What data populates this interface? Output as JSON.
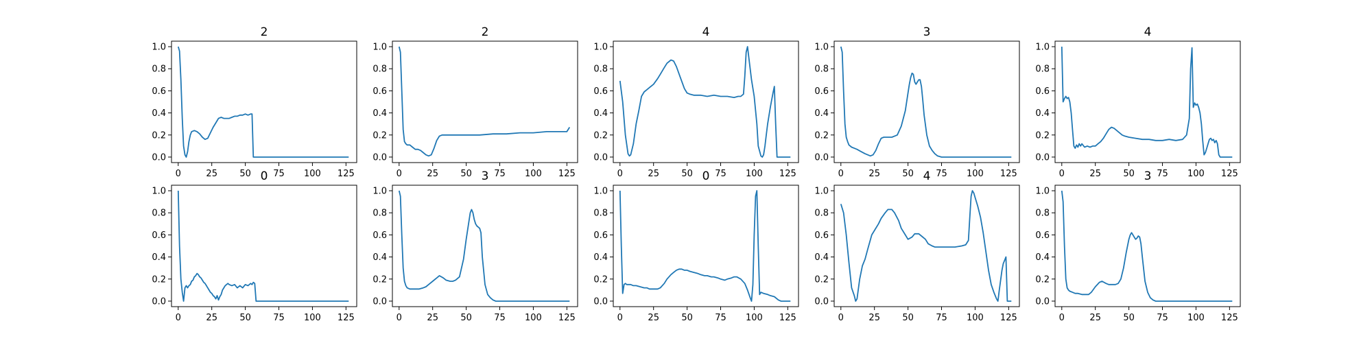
{
  "colors": {
    "line": "#1f77b4",
    "axes": "#000000",
    "background": "#ffffff"
  },
  "chart_data": [
    {
      "type": "line",
      "title": "2",
      "xlim": [
        -5,
        133
      ],
      "ylim": [
        -0.05,
        1.05
      ],
      "xticks": [
        0,
        25,
        50,
        75,
        100,
        125
      ],
      "yticks": [
        0.0,
        0.2,
        0.4,
        0.6,
        0.8,
        1.0
      ],
      "x": [
        0,
        1,
        2,
        3,
        4,
        5,
        6,
        7,
        8,
        9,
        10,
        12,
        14,
        16,
        18,
        20,
        22,
        24,
        26,
        28,
        30,
        32,
        34,
        36,
        38,
        40,
        42,
        44,
        46,
        48,
        50,
        52,
        54,
        55,
        56,
        60,
        70,
        80,
        90,
        100,
        110,
        120,
        127
      ],
      "y": [
        1.0,
        0.96,
        0.7,
        0.35,
        0.1,
        0.02,
        0.0,
        0.05,
        0.14,
        0.2,
        0.23,
        0.24,
        0.23,
        0.21,
        0.18,
        0.16,
        0.17,
        0.22,
        0.27,
        0.31,
        0.35,
        0.36,
        0.35,
        0.35,
        0.35,
        0.36,
        0.37,
        0.37,
        0.38,
        0.38,
        0.39,
        0.38,
        0.39,
        0.39,
        0.0,
        0.0,
        0.0,
        0.0,
        0.0,
        0.0,
        0.0,
        0.0,
        0.0
      ]
    },
    {
      "type": "line",
      "title": "2",
      "xlim": [
        -5,
        133
      ],
      "ylim": [
        -0.05,
        1.05
      ],
      "xticks": [
        0,
        25,
        50,
        75,
        100,
        125
      ],
      "yticks": [
        0.0,
        0.2,
        0.4,
        0.6,
        0.8,
        1.0
      ],
      "x": [
        0,
        1,
        2,
        3,
        4,
        5,
        6,
        8,
        10,
        12,
        14,
        16,
        18,
        20,
        22,
        24,
        26,
        28,
        30,
        32,
        35,
        40,
        50,
        60,
        70,
        80,
        90,
        100,
        110,
        120,
        125,
        127
      ],
      "y": [
        1.0,
        0.95,
        0.6,
        0.25,
        0.14,
        0.12,
        0.11,
        0.11,
        0.09,
        0.07,
        0.07,
        0.06,
        0.04,
        0.02,
        0.01,
        0.02,
        0.08,
        0.15,
        0.19,
        0.2,
        0.2,
        0.2,
        0.2,
        0.2,
        0.21,
        0.21,
        0.22,
        0.22,
        0.23,
        0.23,
        0.23,
        0.27
      ]
    },
    {
      "type": "line",
      "title": "4",
      "xlim": [
        -5,
        133
      ],
      "ylim": [
        -0.05,
        1.05
      ],
      "xticks": [
        0,
        25,
        50,
        75,
        100,
        125
      ],
      "yticks": [
        0.0,
        0.2,
        0.4,
        0.6,
        0.8,
        1.0
      ],
      "x": [
        0,
        2,
        4,
        6,
        7,
        8,
        10,
        12,
        14,
        16,
        18,
        20,
        22,
        25,
        28,
        30,
        33,
        35,
        37,
        38,
        40,
        42,
        45,
        48,
        50,
        52,
        55,
        60,
        65,
        70,
        75,
        80,
        85,
        88,
        90,
        92,
        93,
        94,
        95,
        96,
        98,
        100,
        102,
        103,
        105,
        106,
        107,
        108,
        109,
        110,
        112,
        114,
        115,
        116,
        117,
        120,
        125,
        127
      ],
      "y": [
        0.69,
        0.5,
        0.2,
        0.03,
        0.01,
        0.02,
        0.12,
        0.3,
        0.42,
        0.55,
        0.59,
        0.61,
        0.63,
        0.66,
        0.71,
        0.75,
        0.81,
        0.85,
        0.87,
        0.88,
        0.87,
        0.82,
        0.72,
        0.62,
        0.58,
        0.57,
        0.56,
        0.56,
        0.55,
        0.56,
        0.55,
        0.55,
        0.54,
        0.55,
        0.55,
        0.57,
        0.73,
        0.95,
        1.0,
        0.9,
        0.7,
        0.55,
        0.3,
        0.1,
        0.01,
        0.0,
        0.02,
        0.1,
        0.2,
        0.3,
        0.45,
        0.58,
        0.64,
        0.3,
        0.0,
        0.0,
        0.0,
        0.0
      ]
    },
    {
      "type": "line",
      "title": "3",
      "xlim": [
        -5,
        133
      ],
      "ylim": [
        -0.05,
        1.05
      ],
      "xticks": [
        0,
        25,
        50,
        75,
        100,
        125
      ],
      "yticks": [
        0.0,
        0.2,
        0.4,
        0.6,
        0.8,
        1.0
      ],
      "x": [
        0,
        1,
        2,
        3,
        4,
        5,
        6,
        8,
        10,
        12,
        15,
        18,
        20,
        22,
        24,
        26,
        28,
        30,
        32,
        35,
        38,
        40,
        42,
        45,
        48,
        50,
        51,
        52,
        53,
        54,
        55,
        56,
        57,
        58,
        59,
        60,
        61,
        62,
        64,
        66,
        68,
        70,
        72,
        75,
        80,
        90,
        100,
        110,
        120,
        127
      ],
      "y": [
        1.0,
        0.95,
        0.6,
        0.3,
        0.18,
        0.14,
        0.11,
        0.09,
        0.08,
        0.07,
        0.05,
        0.03,
        0.02,
        0.01,
        0.02,
        0.06,
        0.12,
        0.17,
        0.18,
        0.18,
        0.18,
        0.19,
        0.2,
        0.28,
        0.42,
        0.58,
        0.66,
        0.72,
        0.76,
        0.75,
        0.68,
        0.66,
        0.68,
        0.7,
        0.7,
        0.64,
        0.52,
        0.38,
        0.2,
        0.1,
        0.06,
        0.03,
        0.01,
        0.0,
        0.0,
        0.0,
        0.0,
        0.0,
        0.0,
        0.0
      ]
    },
    {
      "type": "line",
      "title": "4",
      "xlim": [
        -5,
        133
      ],
      "ylim": [
        -0.05,
        1.05
      ],
      "xticks": [
        0,
        25,
        50,
        75,
        100,
        125
      ],
      "yticks": [
        0.0,
        0.2,
        0.4,
        0.6,
        0.8,
        1.0
      ],
      "x": [
        0,
        1,
        2,
        3,
        4,
        5,
        6,
        7,
        8,
        9,
        10,
        11,
        12,
        13,
        14,
        15,
        17,
        19,
        21,
        23,
        25,
        27,
        29,
        31,
        33,
        35,
        37,
        39,
        41,
        43,
        45,
        47,
        50,
        55,
        60,
        65,
        70,
        75,
        80,
        85,
        90,
        93,
        95,
        96,
        97,
        98,
        99,
        100,
        101,
        102,
        103,
        104,
        105,
        106,
        107,
        108,
        109,
        110,
        111,
        112,
        113,
        114,
        115,
        116,
        117,
        118,
        120,
        125,
        127
      ],
      "y": [
        1.0,
        0.5,
        0.53,
        0.55,
        0.53,
        0.54,
        0.5,
        0.4,
        0.25,
        0.1,
        0.08,
        0.11,
        0.09,
        0.12,
        0.1,
        0.12,
        0.09,
        0.1,
        0.09,
        0.1,
        0.1,
        0.12,
        0.14,
        0.17,
        0.21,
        0.25,
        0.27,
        0.26,
        0.24,
        0.22,
        0.2,
        0.19,
        0.18,
        0.17,
        0.16,
        0.16,
        0.15,
        0.15,
        0.16,
        0.15,
        0.16,
        0.2,
        0.35,
        0.8,
        0.99,
        0.45,
        0.49,
        0.47,
        0.48,
        0.45,
        0.4,
        0.3,
        0.15,
        0.02,
        0.04,
        0.08,
        0.12,
        0.16,
        0.17,
        0.15,
        0.16,
        0.13,
        0.15,
        0.12,
        0.02,
        0.0,
        0.0,
        0.0,
        0.0
      ]
    },
    {
      "type": "line",
      "title": "0",
      "xlim": [
        -5,
        133
      ],
      "ylim": [
        -0.05,
        1.05
      ],
      "xticks": [
        0,
        25,
        50,
        75,
        100,
        125
      ],
      "yticks": [
        0.0,
        0.2,
        0.4,
        0.6,
        0.8,
        1.0
      ],
      "x": [
        0,
        1,
        2,
        3,
        4,
        5,
        6,
        7,
        8,
        9,
        10,
        11,
        12,
        13,
        14,
        15,
        16,
        17,
        18,
        19,
        20,
        21,
        22,
        23,
        24,
        25,
        26,
        27,
        28,
        29,
        30,
        31,
        32,
        33,
        34,
        35,
        36,
        37,
        38,
        40,
        42,
        44,
        46,
        48,
        50,
        52,
        54,
        55,
        56,
        57,
        58,
        60,
        70,
        80,
        90,
        100,
        110,
        120,
        127
      ],
      "y": [
        1.0,
        0.5,
        0.2,
        0.08,
        0.0,
        0.12,
        0.14,
        0.12,
        0.14,
        0.15,
        0.18,
        0.19,
        0.22,
        0.23,
        0.25,
        0.24,
        0.22,
        0.21,
        0.19,
        0.17,
        0.16,
        0.14,
        0.12,
        0.1,
        0.08,
        0.07,
        0.05,
        0.04,
        0.02,
        0.05,
        0.01,
        0.04,
        0.06,
        0.1,
        0.12,
        0.14,
        0.15,
        0.16,
        0.15,
        0.14,
        0.15,
        0.12,
        0.14,
        0.12,
        0.15,
        0.14,
        0.16,
        0.15,
        0.17,
        0.16,
        0.0,
        0.0,
        0.0,
        0.0,
        0.0,
        0.0,
        0.0,
        0.0,
        0.0
      ]
    },
    {
      "type": "line",
      "title": "3",
      "xlim": [
        -5,
        133
      ],
      "ylim": [
        -0.05,
        1.05
      ],
      "xticks": [
        0,
        25,
        50,
        75,
        100,
        125
      ],
      "yticks": [
        0.0,
        0.2,
        0.4,
        0.6,
        0.8,
        1.0
      ],
      "x": [
        0,
        1,
        2,
        3,
        4,
        5,
        6,
        8,
        10,
        12,
        15,
        18,
        20,
        22,
        25,
        28,
        30,
        33,
        35,
        38,
        40,
        42,
        45,
        48,
        50,
        52,
        53,
        54,
        55,
        56,
        57,
        58,
        59,
        60,
        61,
        62,
        64,
        66,
        68,
        70,
        72,
        75,
        80,
        90,
        100,
        110,
        120,
        127
      ],
      "y": [
        1.0,
        0.95,
        0.6,
        0.3,
        0.18,
        0.14,
        0.12,
        0.11,
        0.11,
        0.11,
        0.11,
        0.12,
        0.13,
        0.15,
        0.18,
        0.21,
        0.23,
        0.21,
        0.19,
        0.18,
        0.18,
        0.19,
        0.22,
        0.38,
        0.56,
        0.72,
        0.8,
        0.83,
        0.8,
        0.74,
        0.7,
        0.68,
        0.67,
        0.66,
        0.62,
        0.4,
        0.15,
        0.06,
        0.03,
        0.01,
        0.0,
        0.0,
        0.0,
        0.0,
        0.0,
        0.0,
        0.0,
        0.0
      ]
    },
    {
      "type": "line",
      "title": "0",
      "xlim": [
        -5,
        133
      ],
      "ylim": [
        -0.05,
        1.05
      ],
      "xticks": [
        0,
        25,
        50,
        75,
        100,
        125
      ],
      "yticks": [
        0.0,
        0.2,
        0.4,
        0.6,
        0.8,
        1.0
      ],
      "x": [
        0,
        1,
        2,
        3,
        4,
        5,
        6,
        8,
        10,
        12,
        15,
        18,
        20,
        22,
        25,
        28,
        30,
        33,
        35,
        38,
        40,
        42,
        44,
        46,
        48,
        50,
        52,
        55,
        58,
        60,
        63,
        65,
        68,
        70,
        73,
        75,
        78,
        80,
        83,
        85,
        87,
        90,
        93,
        95,
        97,
        98,
        99,
        100,
        101,
        102,
        103,
        104,
        105,
        107,
        110,
        112,
        115,
        118,
        120,
        125,
        127
      ],
      "y": [
        1.0,
        0.5,
        0.07,
        0.15,
        0.16,
        0.15,
        0.15,
        0.15,
        0.14,
        0.14,
        0.13,
        0.12,
        0.12,
        0.11,
        0.11,
        0.11,
        0.12,
        0.16,
        0.2,
        0.24,
        0.26,
        0.28,
        0.29,
        0.29,
        0.28,
        0.28,
        0.27,
        0.26,
        0.25,
        0.24,
        0.23,
        0.23,
        0.22,
        0.22,
        0.21,
        0.2,
        0.19,
        0.2,
        0.21,
        0.22,
        0.22,
        0.2,
        0.16,
        0.1,
        0.03,
        0.0,
        0.15,
        0.6,
        0.95,
        1.0,
        0.5,
        0.06,
        0.08,
        0.07,
        0.06,
        0.05,
        0.04,
        0.01,
        0.0,
        0.0,
        0.0
      ]
    },
    {
      "type": "line",
      "title": "4",
      "xlim": [
        -5,
        133
      ],
      "ylim": [
        -0.05,
        1.05
      ],
      "xticks": [
        0,
        25,
        50,
        75,
        100,
        125
      ],
      "yticks": [
        0.0,
        0.2,
        0.4,
        0.6,
        0.8,
        1.0
      ],
      "x": [
        0,
        2,
        4,
        6,
        8,
        10,
        11,
        12,
        14,
        16,
        18,
        20,
        23,
        25,
        28,
        30,
        33,
        35,
        38,
        40,
        43,
        45,
        48,
        50,
        53,
        55,
        58,
        60,
        63,
        65,
        68,
        70,
        75,
        80,
        85,
        90,
        93,
        95,
        96,
        97,
        98,
        99,
        100,
        102,
        104,
        106,
        108,
        110,
        112,
        114,
        116,
        117,
        118,
        120,
        121,
        122,
        123,
        124,
        125,
        127
      ],
      "y": [
        0.88,
        0.8,
        0.6,
        0.35,
        0.12,
        0.05,
        0.0,
        0.02,
        0.2,
        0.32,
        0.38,
        0.47,
        0.6,
        0.64,
        0.7,
        0.75,
        0.8,
        0.83,
        0.83,
        0.8,
        0.73,
        0.66,
        0.6,
        0.56,
        0.58,
        0.61,
        0.61,
        0.59,
        0.56,
        0.52,
        0.5,
        0.49,
        0.49,
        0.49,
        0.49,
        0.5,
        0.51,
        0.55,
        0.75,
        0.95,
        1.0,
        0.98,
        0.94,
        0.86,
        0.76,
        0.62,
        0.45,
        0.28,
        0.15,
        0.08,
        0.02,
        0.0,
        0.1,
        0.28,
        0.34,
        0.37,
        0.4,
        0.0,
        0.0,
        0.0
      ]
    },
    {
      "type": "line",
      "title": "3",
      "xlim": [
        -5,
        133
      ],
      "ylim": [
        -0.05,
        1.05
      ],
      "xticks": [
        0,
        25,
        50,
        75,
        100,
        125
      ],
      "yticks": [
        0.0,
        0.2,
        0.4,
        0.6,
        0.8,
        1.0
      ],
      "x": [
        0,
        1,
        2,
        3,
        4,
        5,
        6,
        8,
        10,
        12,
        15,
        18,
        20,
        22,
        25,
        28,
        30,
        33,
        35,
        38,
        40,
        42,
        44,
        46,
        48,
        50,
        51,
        52,
        53,
        54,
        55,
        56,
        57,
        58,
        59,
        60,
        62,
        64,
        66,
        68,
        70,
        75,
        80,
        90,
        100,
        110,
        120,
        127
      ],
      "y": [
        1.0,
        0.9,
        0.5,
        0.2,
        0.12,
        0.1,
        0.09,
        0.08,
        0.07,
        0.07,
        0.06,
        0.06,
        0.06,
        0.08,
        0.13,
        0.17,
        0.18,
        0.16,
        0.15,
        0.15,
        0.15,
        0.16,
        0.2,
        0.3,
        0.44,
        0.56,
        0.6,
        0.62,
        0.6,
        0.58,
        0.56,
        0.57,
        0.59,
        0.58,
        0.52,
        0.4,
        0.18,
        0.08,
        0.03,
        0.01,
        0.0,
        0.0,
        0.0,
        0.0,
        0.0,
        0.0,
        0.0,
        0.0
      ]
    }
  ]
}
